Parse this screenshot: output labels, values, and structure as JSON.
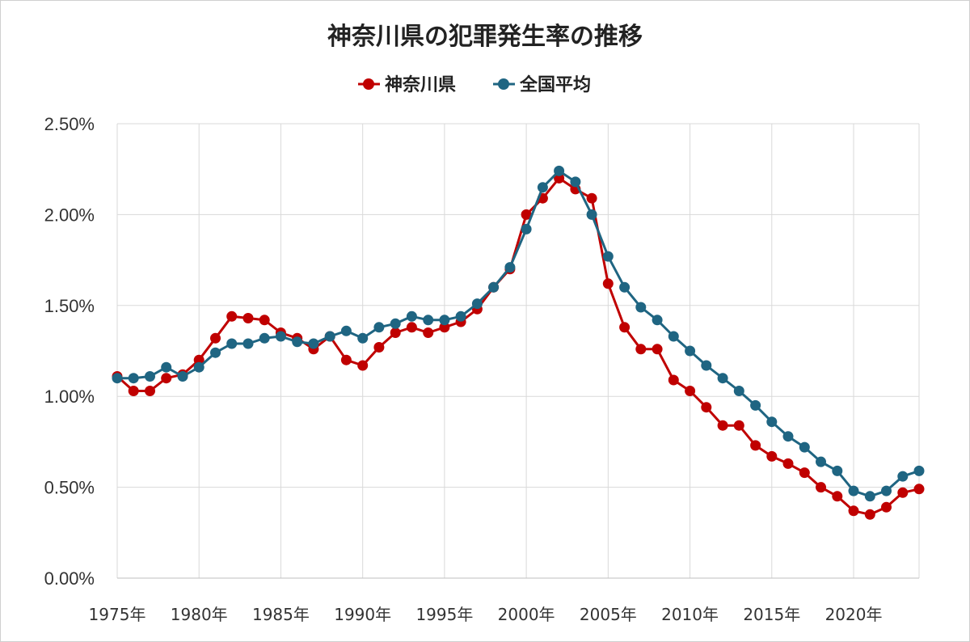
{
  "chart_data": {
    "type": "line",
    "title": "神奈川県の犯罪発生率の推移",
    "legend_position": "top-center",
    "grid": {
      "vertical": true,
      "horizontal": true
    },
    "x": [
      1975,
      1976,
      1977,
      1978,
      1979,
      1980,
      1981,
      1982,
      1983,
      1984,
      1985,
      1986,
      1987,
      1988,
      1989,
      1990,
      1991,
      1992,
      1993,
      1994,
      1995,
      1996,
      1997,
      1998,
      1999,
      2000,
      2001,
      2002,
      2003,
      2004,
      2005,
      2006,
      2007,
      2008,
      2009,
      2010,
      2011,
      2012,
      2013,
      2014,
      2015,
      2016,
      2017,
      2018,
      2019,
      2020,
      2021,
      2022,
      2023,
      2024
    ],
    "xlim": [
      1975,
      2024
    ],
    "x_ticks": [
      1975,
      1980,
      1985,
      1990,
      1995,
      2000,
      2005,
      2010,
      2015,
      2020
    ],
    "x_tick_labels": [
      "1975年",
      "1980年",
      "1985年",
      "1990年",
      "1995年",
      "2000年",
      "2005年",
      "2010年",
      "2015年",
      "2020年"
    ],
    "ylim": [
      0,
      2.5
    ],
    "y_ticks": [
      0,
      0.5,
      1.0,
      1.5,
      2.0,
      2.5
    ],
    "y_tick_labels": [
      "0.00%",
      "0.50%",
      "1.00%",
      "1.50%",
      "2.00%",
      "2.50%"
    ],
    "series": [
      {
        "name": "神奈川県",
        "color": "#c00000",
        "values": [
          1.11,
          1.03,
          1.03,
          1.1,
          1.12,
          1.2,
          1.32,
          1.44,
          1.43,
          1.42,
          1.35,
          1.32,
          1.26,
          1.33,
          1.2,
          1.17,
          1.27,
          1.35,
          1.38,
          1.35,
          1.38,
          1.41,
          1.48,
          1.6,
          1.7,
          2.0,
          2.09,
          2.2,
          2.14,
          2.09,
          1.62,
          1.38,
          1.26,
          1.26,
          1.09,
          1.03,
          0.94,
          0.84,
          0.84,
          0.73,
          0.67,
          0.63,
          0.58,
          0.5,
          0.45,
          0.37,
          0.35,
          0.39,
          0.47,
          0.49
        ]
      },
      {
        "name": "全国平均",
        "color": "#1f6582",
        "values": [
          1.1,
          1.1,
          1.11,
          1.16,
          1.11,
          1.16,
          1.24,
          1.29,
          1.29,
          1.32,
          1.33,
          1.3,
          1.29,
          1.33,
          1.36,
          1.32,
          1.38,
          1.4,
          1.44,
          1.42,
          1.42,
          1.44,
          1.51,
          1.6,
          1.71,
          1.92,
          2.15,
          2.24,
          2.18,
          2.0,
          1.77,
          1.6,
          1.49,
          1.42,
          1.33,
          1.25,
          1.17,
          1.1,
          1.03,
          0.95,
          0.86,
          0.78,
          0.72,
          0.64,
          0.59,
          0.48,
          0.45,
          0.48,
          0.56,
          0.59
        ]
      }
    ]
  }
}
